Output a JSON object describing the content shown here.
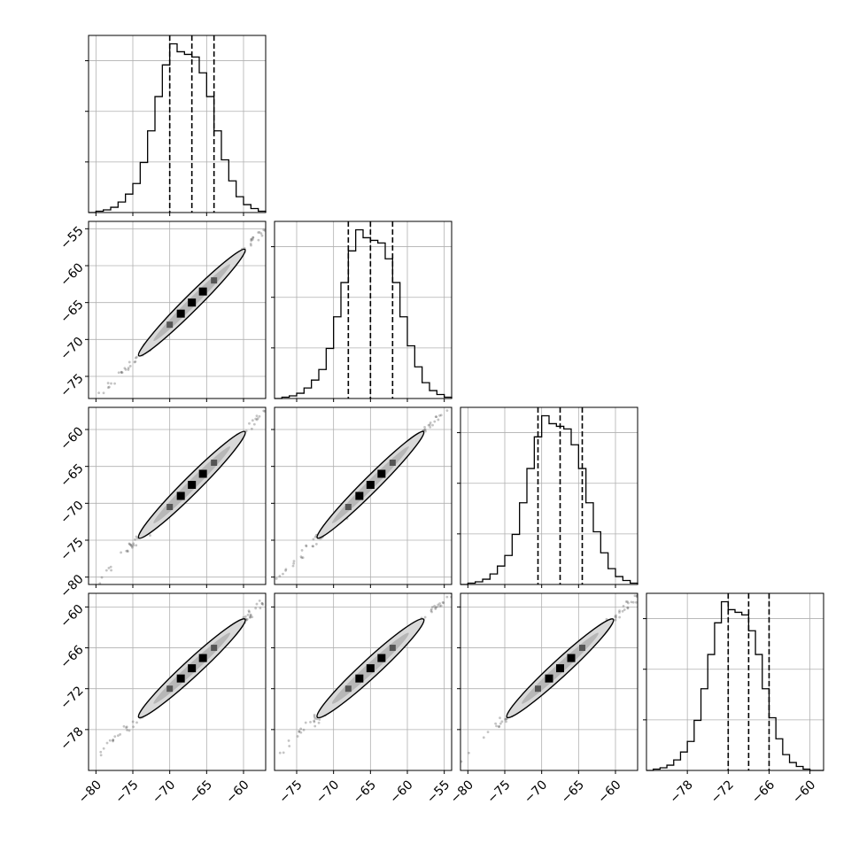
{
  "chart_data": {
    "type": "corner",
    "n_params": 4,
    "grid": true,
    "colors": {
      "line": "#000000",
      "grid": "#b0b0b0",
      "scatter": "#555555",
      "contour_fill": "#d9d9d9"
    },
    "params": [
      {
        "range": [
          -81,
          -57
        ],
        "quantiles": [
          -70.0,
          -67.0,
          -64.0
        ],
        "bottom_ticks": [
          "−80",
          "−75",
          "−70",
          "−65",
          "−60"
        ],
        "bottom_tick_values": [
          -80,
          -75,
          -70,
          -65,
          -60
        ]
      },
      {
        "range": [
          -78,
          -54
        ],
        "quantiles": [
          -68.0,
          -65.0,
          -62.0
        ],
        "left_ticks": [
          "−55",
          "−60",
          "−65",
          "−70",
          "−75"
        ],
        "left_tick_values": [
          -55,
          -60,
          -65,
          -70,
          -75
        ],
        "bottom_ticks": [
          "−75",
          "−70",
          "−65",
          "−60",
          "−55"
        ],
        "bottom_tick_values": [
          -75,
          -70,
          -65,
          -60,
          -55
        ]
      },
      {
        "range": [
          -81,
          -57
        ],
        "quantiles": [
          -70.5,
          -67.5,
          -64.5
        ],
        "left_ticks": [
          "−60",
          "−65",
          "−70",
          "−75",
          "−80"
        ],
        "left_tick_values": [
          -60,
          -65,
          -70,
          -75,
          -80
        ],
        "bottom_ticks": [
          "−80",
          "−75",
          "−70",
          "−65",
          "−60"
        ],
        "bottom_tick_values": [
          -80,
          -75,
          -70,
          -65,
          -60
        ]
      },
      {
        "range": [
          -84,
          -58
        ],
        "quantiles": [
          -72.0,
          -69.0,
          -66.0
        ],
        "left_ticks": [
          "−60",
          "−66",
          "−72",
          "−78"
        ],
        "left_tick_values": [
          -60,
          -66,
          -72,
          -78
        ],
        "bottom_ticks": [
          "−78",
          "−72",
          "−66",
          "−60"
        ],
        "bottom_tick_values": [
          -78,
          -72,
          -66,
          -60
        ]
      }
    ],
    "histograms": [
      {
        "param": 0,
        "bin_edges": [
          -81,
          -80,
          -79,
          -78,
          -77,
          -76,
          -75,
          -74,
          -73,
          -72,
          -71,
          -70,
          -69,
          -68,
          -67,
          -66,
          -65,
          -64,
          -63,
          -62,
          -61,
          -60,
          -59,
          -58,
          -57
        ],
        "counts": [
          0,
          1,
          2,
          4,
          8,
          14,
          22,
          38,
          62,
          88,
          112,
          128,
          122,
          120,
          118,
          106,
          88,
          62,
          40,
          24,
          12,
          6,
          3,
          1
        ]
      },
      {
        "param": 1,
        "bin_edges": [
          -78,
          -77,
          -76,
          -75,
          -74,
          -73,
          -72,
          -71,
          -70,
          -69,
          -68,
          -67,
          -66,
          -65,
          -64,
          -63,
          -62,
          -61,
          -60,
          -59,
          -58,
          -57,
          -56,
          -55,
          -54
        ],
        "counts": [
          0,
          1,
          2,
          4,
          8,
          14,
          22,
          38,
          62,
          88,
          112,
          128,
          122,
          120,
          118,
          106,
          88,
          62,
          40,
          24,
          12,
          6,
          3,
          1
        ]
      },
      {
        "param": 2,
        "bin_edges": [
          -81,
          -80,
          -79,
          -78,
          -77,
          -76,
          -75,
          -74,
          -73,
          -72,
          -71,
          -70,
          -69,
          -68,
          -67,
          -66,
          -65,
          -64,
          -63,
          -62,
          -61,
          -60,
          -59,
          -58,
          -57
        ],
        "counts": [
          0,
          1,
          2,
          4,
          8,
          14,
          22,
          38,
          62,
          88,
          112,
          128,
          122,
          120,
          118,
          106,
          88,
          62,
          40,
          24,
          12,
          6,
          3,
          1
        ]
      },
      {
        "param": 3,
        "bin_edges": [
          -84,
          -83,
          -82,
          -81,
          -80,
          -79,
          -78,
          -77,
          -76,
          -75,
          -74,
          -73,
          -72,
          -71,
          -70,
          -69,
          -68,
          -67,
          -66,
          -65,
          -64,
          -63,
          -62,
          -61,
          -60,
          -59,
          -58
        ],
        "counts": [
          0,
          1,
          2,
          4,
          8,
          14,
          22,
          38,
          62,
          88,
          112,
          128,
          122,
          120,
          118,
          106,
          88,
          62,
          40,
          24,
          12,
          6,
          3,
          1,
          0,
          0
        ]
      }
    ],
    "pairs": [
      {
        "x_param": 0,
        "y_param": 1,
        "slope": 1.0,
        "intercept": 2.0,
        "contour_halfwidth": 1.2,
        "spread": 5.5
      },
      {
        "x_param": 0,
        "y_param": 2,
        "slope": 1.0,
        "intercept": -0.5,
        "contour_halfwidth": 1.3,
        "spread": 5.5
      },
      {
        "x_param": 1,
        "y_param": 2,
        "slope": 1.0,
        "intercept": -2.5,
        "contour_halfwidth": 1.2,
        "spread": 5.5
      },
      {
        "x_param": 0,
        "y_param": 3,
        "slope": 1.0,
        "intercept": -2.0,
        "contour_halfwidth": 1.3,
        "spread": 5.5
      },
      {
        "x_param": 1,
        "y_param": 3,
        "slope": 1.0,
        "intercept": -4.0,
        "contour_halfwidth": 1.4,
        "spread": 5.5
      },
      {
        "x_param": 2,
        "y_param": 3,
        "slope": 1.0,
        "intercept": -1.5,
        "contour_halfwidth": 1.3,
        "spread": 5.5
      }
    ]
  }
}
